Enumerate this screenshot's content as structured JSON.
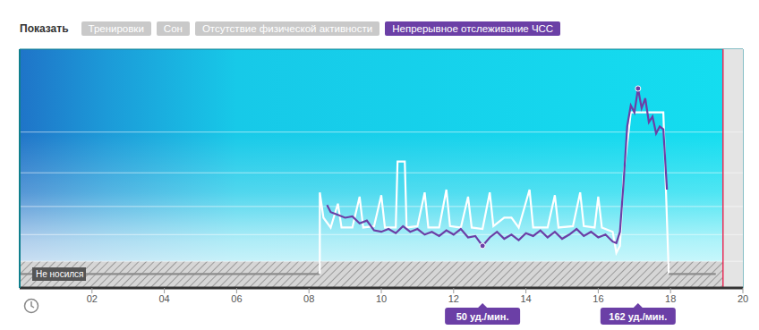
{
  "header": {
    "show_label": "Показать",
    "filters": [
      {
        "label": "Тренировки",
        "active": false
      },
      {
        "label": "Сон",
        "active": false
      },
      {
        "label": "Отсутствие физической активности",
        "active": false
      },
      {
        "label": "Непрерывное отслеживание ЧСС",
        "active": true
      }
    ]
  },
  "chart_data": {
    "type": "line",
    "xlim": [
      0,
      20
    ],
    "xticks": [
      {
        "value": 2,
        "label": "02"
      },
      {
        "value": 4,
        "label": "04"
      },
      {
        "value": 6,
        "label": "06"
      },
      {
        "value": 8,
        "label": "08"
      },
      10,
      12,
      14,
      16,
      18,
      20
    ],
    "ylim": [
      20,
      190
    ],
    "yticks": [
      39,
      58,
      78,
      102,
      131
    ],
    "grid": true,
    "tick_labels": "x",
    "current_time": 19.45,
    "not_worn_label": "Не носился",
    "series": [
      {
        "color": "#8c8c8c",
        "x": [
          0,
          8.3
        ],
        "values": [
          30,
          30
        ]
      },
      {
        "color": "#ffffff",
        "x": [
          8.3,
          8.3,
          8.4,
          8.6,
          8.8,
          8.9,
          9.2,
          9.4,
          9.5,
          9.8,
          10.0,
          10.1,
          10.4,
          10.45,
          10.65,
          10.7,
          11.0,
          11.2,
          11.3,
          11.6,
          11.8,
          11.9,
          12.2,
          12.4,
          12.5,
          12.8,
          13.0,
          13.1,
          13.4,
          13.6,
          13.8,
          14.1,
          14.2,
          14.6,
          14.8,
          14.9,
          15.3,
          15.5,
          15.6,
          15.9,
          16.0,
          16.1,
          16.4,
          16.5,
          16.6,
          16.7,
          16.9,
          17.8,
          17.95
        ],
        "values": [
          30,
          88,
          70,
          63,
          80,
          63,
          63,
          85,
          63,
          64,
          86,
          63,
          63,
          110,
          110,
          63,
          64,
          88,
          63,
          63,
          90,
          64,
          63,
          85,
          63,
          62,
          88,
          64,
          70,
          70,
          63,
          90,
          63,
          63,
          86,
          63,
          64,
          88,
          64,
          63,
          85,
          63,
          60,
          45,
          50,
          100,
          145,
          145,
          30
        ]
      },
      {
        "color": "#6b3fa6",
        "x": [
          8.5,
          8.6,
          8.8,
          9.0,
          9.2,
          9.4,
          9.6,
          9.8,
          10.0,
          10.2,
          10.4,
          10.6,
          10.8,
          11.0,
          11.2,
          11.4,
          11.6,
          11.8,
          12.0,
          12.2,
          12.4,
          12.6,
          12.8,
          13.0,
          13.2,
          13.4,
          13.6,
          13.8,
          14.0,
          14.2,
          14.4,
          14.6,
          14.8,
          15.0,
          15.2,
          15.4,
          15.6,
          15.8,
          16.0,
          16.2,
          16.4,
          16.5,
          16.6,
          16.7,
          16.8,
          16.9,
          17.0,
          17.1,
          17.2,
          17.3,
          17.4,
          17.5,
          17.6,
          17.7,
          17.8,
          17.9
        ],
        "values": [
          79,
          74,
          72,
          70,
          71,
          66,
          68,
          61,
          60,
          62,
          59,
          64,
          60,
          62,
          58,
          60,
          57,
          61,
          58,
          62,
          56,
          57,
          50,
          56,
          60,
          55,
          58,
          54,
          59,
          57,
          61,
          56,
          60,
          55,
          58,
          62,
          57,
          60,
          56,
          58,
          53,
          52,
          60,
          95,
          135,
          150,
          145,
          162,
          148,
          155,
          138,
          142,
          130,
          135,
          133,
          90
        ]
      },
      {
        "color": "#8c8c8c",
        "x": [
          17.95,
          19.25
        ],
        "values": [
          30,
          30
        ]
      }
    ],
    "annotations": [
      {
        "text": "50 уд./мин.",
        "x": 12.8,
        "y": 50
      },
      {
        "text": "162 уд./мин.",
        "x": 17.1,
        "y": 162
      }
    ]
  }
}
